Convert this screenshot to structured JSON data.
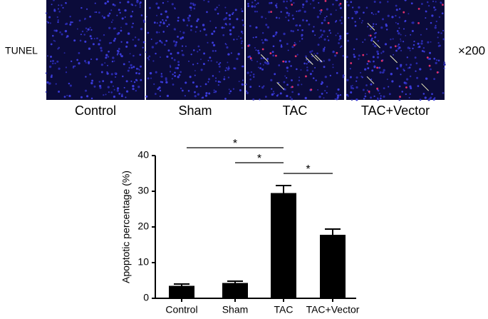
{
  "panel_row_label": "TUNEL",
  "magnification": "×200",
  "panels": [
    {
      "label": "Control"
    },
    {
      "label": "Sham"
    },
    {
      "label": "TAC"
    },
    {
      "label": "TAC+Vector"
    }
  ],
  "chart_data": {
    "type": "bar",
    "ylabel": "Apoptotic percentage (%)",
    "categories": [
      "Control",
      "Sham",
      "TAC",
      "TAC+Vector"
    ],
    "values": [
      3.5,
      4.3,
      29.5,
      17.8
    ],
    "errors": [
      0.5,
      0.5,
      2.1,
      1.6
    ],
    "color": "#000000",
    "ylim": [
      0,
      40
    ],
    "yticks": [
      0,
      10,
      20,
      30,
      40
    ],
    "significance": [
      {
        "from": 0,
        "to": 2,
        "label": "*"
      },
      {
        "from": 1,
        "to": 2,
        "label": "*"
      },
      {
        "from": 2,
        "to": 3,
        "label": "*"
      }
    ]
  }
}
